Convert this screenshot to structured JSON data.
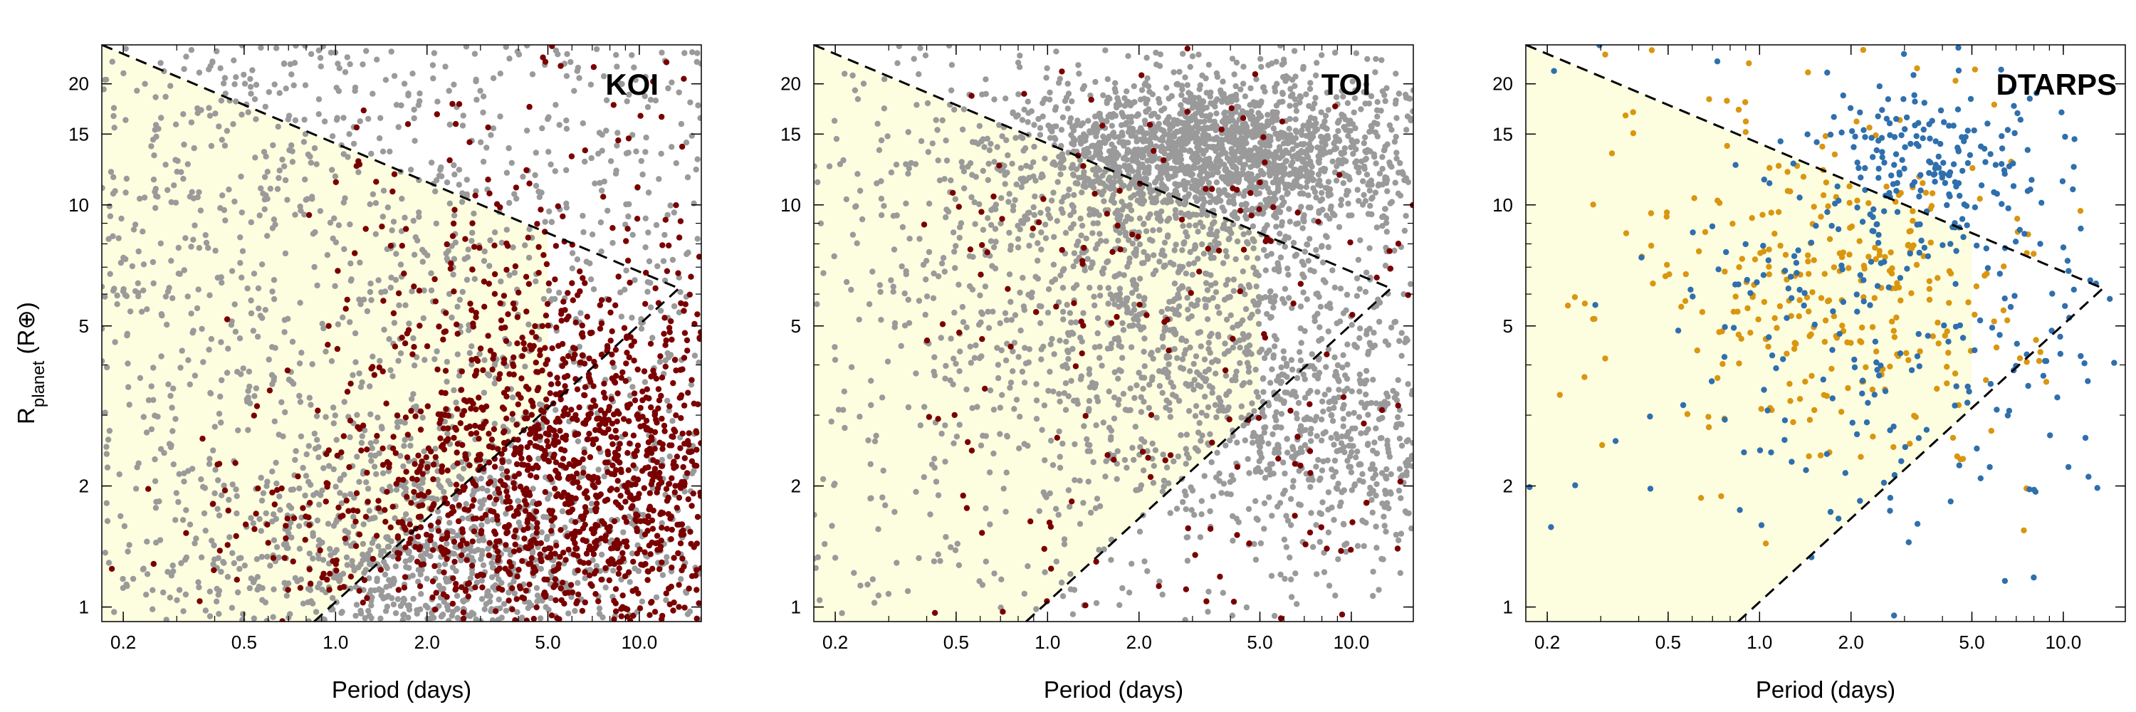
{
  "chart_data": {
    "type": "scatter",
    "y_axis": {
      "label_main": "R",
      "label_sub": "planet",
      "label_unit": " (R⊕)",
      "scale": "log",
      "range": [
        0.92,
        25
      ],
      "ticks": [
        1,
        2,
        5,
        10,
        15,
        20
      ],
      "tick_labels": [
        "1",
        "2",
        "5",
        "10",
        "15",
        "20"
      ]
    },
    "x_axis": {
      "label": "Period (days)",
      "scale": "log",
      "range": [
        0.17,
        16
      ],
      "ticks": [
        0.2,
        0.5,
        1.0,
        2.0,
        5.0,
        10.0
      ],
      "tick_labels": [
        "0.2",
        "0.5",
        "1.0",
        "2.0",
        "5.0",
        "10.0"
      ]
    },
    "desert_boundary": {
      "upper_line": [
        [
          0.17,
          25
        ],
        [
          13.5,
          6.2
        ]
      ],
      "lower_line": [
        [
          0.85,
          0.92
        ],
        [
          13.5,
          6.2
        ]
      ],
      "shaded_region": {
        "x_max": 5.0
      }
    },
    "colors": {
      "background_points": "#9a9a9a",
      "highlight_points": "#7a0000",
      "dtarps_orange": "#d9960f",
      "dtarps_blue": "#2f6fad",
      "desert_fill": "#fdfde0",
      "boundary_line": "#000000"
    },
    "panels": [
      {
        "title": "KOI",
        "series": [
          {
            "color": "#9a9a9a",
            "clusters": [
              {
                "n": 1400,
                "p_range": [
                  0.17,
                  16
                ],
                "r_range": [
                  0.92,
                  25
                ],
                "weight": "uniform"
              },
              {
                "n": 700,
                "p_center": 2.0,
                "r_center": 1.3,
                "p_sigma": 0.35,
                "r_sigma": 0.15
              }
            ]
          },
          {
            "color": "#7a0000",
            "clusters": [
              {
                "n": 1700,
                "p_center": 7.0,
                "r_center": 2.0,
                "p_sigma": 0.4,
                "r_sigma": 0.25
              },
              {
                "n": 120,
                "p_center": 3.2,
                "r_center": 4.0,
                "p_sigma": 0.2,
                "r_sigma": 0.3
              },
              {
                "n": 80,
                "p_center": 0.9,
                "r_center": 1.5,
                "p_sigma": 0.25,
                "r_sigma": 0.1
              },
              {
                "n": 50,
                "p_range": [
                  1,
                  16
                ],
                "r_range": [
                  6,
                  25
                ],
                "weight": "uniform"
              }
            ]
          }
        ]
      },
      {
        "title": "TOI",
        "series": [
          {
            "color": "#9a9a9a",
            "clusters": [
              {
                "n": 1600,
                "p_center": 3.5,
                "r_center": 13.5,
                "p_sigma": 0.3,
                "r_sigma": 0.09
              },
              {
                "n": 1300,
                "p_center": 2.8,
                "r_center": 6.0,
                "p_sigma": 0.45,
                "r_sigma": 0.28
              },
              {
                "n": 400,
                "p_center": 9.0,
                "r_center": 2.5,
                "p_sigma": 0.25,
                "r_sigma": 0.12
              },
              {
                "n": 500,
                "p_range": [
                  0.17,
                  16
                ],
                "r_range": [
                  0.92,
                  25
                ],
                "weight": "uniform"
              }
            ]
          },
          {
            "color": "#7a0000",
            "clusters": [
              {
                "n": 60,
                "p_center": 2.5,
                "r_center": 13.0,
                "p_sigma": 0.35,
                "r_sigma": 0.15
              },
              {
                "n": 120,
                "p_range": [
                  0.4,
                  16
                ],
                "r_range": [
                  0.92,
                  10
                ],
                "weight": "uniform"
              }
            ]
          }
        ]
      },
      {
        "title": "DTARPS",
        "series": [
          {
            "color": "#d9960f",
            "clusters": [
              {
                "n": 260,
                "p_center": 2.0,
                "r_center": 6.5,
                "p_sigma": 0.3,
                "r_sigma": 0.2
              },
              {
                "n": 60,
                "p_range": [
                  0.2,
                  8
                ],
                "r_range": [
                  1.8,
                  25
                ],
                "weight": "uniform"
              }
            ]
          },
          {
            "color": "#2f6fad",
            "clusters": [
              {
                "n": 170,
                "p_center": 4.0,
                "r_center": 13.0,
                "p_sigma": 0.2,
                "r_sigma": 0.12
              },
              {
                "n": 200,
                "p_center": 3.0,
                "r_center": 5.0,
                "p_sigma": 0.4,
                "r_sigma": 0.25
              },
              {
                "n": 40,
                "p_range": [
                  0.2,
                  16
                ],
                "r_range": [
                  1.4,
                  25
                ],
                "weight": "uniform"
              }
            ]
          }
        ]
      }
    ]
  }
}
